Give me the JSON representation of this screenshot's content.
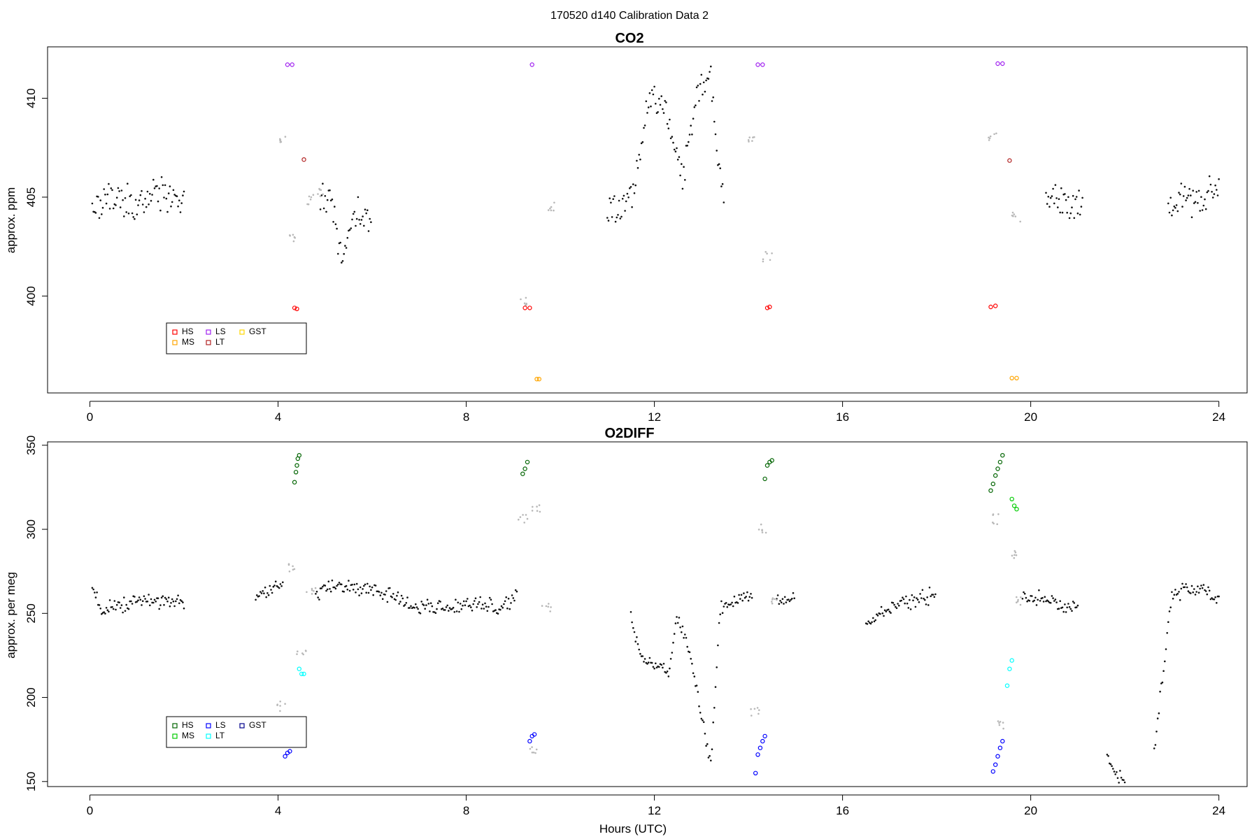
{
  "figure_title": "170520   d140   Calibration Data 2",
  "chart_data": [
    {
      "type": "scatter",
      "title": "CO2",
      "xlabel": "",
      "ylabel": "approx. ppm",
      "xlim": [
        -0.9,
        24.6
      ],
      "ylim": [
        395.1,
        412.6
      ],
      "xticks": [
        0,
        4,
        8,
        12,
        16,
        20,
        24
      ],
      "yticks": [
        400,
        405,
        410
      ],
      "grid": false,
      "legend_position": "bottom-left",
      "legend": [
        {
          "label": "HS",
          "color": "#ff0000"
        },
        {
          "label": "MS",
          "color": "#ffa500"
        },
        {
          "label": "LS",
          "color": "#a020f0"
        },
        {
          "label": "LT",
          "color": "#b22222"
        },
        {
          "label": "GST",
          "color": "#ffd700"
        }
      ],
      "series": [
        {
          "name": "HS",
          "color": "#ff0000",
          "points": [
            [
              4.35,
              399.4
            ],
            [
              4.4,
              399.35
            ],
            [
              9.25,
              399.4
            ],
            [
              9.35,
              399.4
            ],
            [
              14.4,
              399.4
            ],
            [
              14.45,
              399.45
            ],
            [
              19.15,
              399.45
            ],
            [
              19.25,
              399.5
            ]
          ]
        },
        {
          "name": "MS",
          "color": "#ffa500",
          "points": [
            [
              9.5,
              395.8
            ],
            [
              9.55,
              395.8
            ],
            [
              19.6,
              395.85
            ],
            [
              19.7,
              395.85
            ]
          ]
        },
        {
          "name": "LS",
          "color": "#a020f0",
          "points": [
            [
              4.2,
              411.7
            ],
            [
              4.3,
              411.7
            ],
            [
              9.4,
              411.7
            ],
            [
              14.2,
              411.7
            ],
            [
              14.3,
              411.7
            ],
            [
              19.3,
              411.75
            ],
            [
              19.4,
              411.75
            ]
          ]
        },
        {
          "name": "LT",
          "color": "#b22222",
          "points": [
            [
              4.55,
              406.9
            ],
            [
              19.55,
              406.85
            ]
          ]
        },
        {
          "name": "GST",
          "color": "#ffd700",
          "points": []
        }
      ],
      "sample_profile": [
        [
          0.05,
          404.7
        ],
        [
          0.3,
          404.7
        ],
        [
          0.6,
          404.8
        ],
        [
          0.9,
          404.7
        ],
        [
          1.2,
          404.65
        ],
        [
          1.3,
          405.1
        ],
        [
          1.6,
          405.1
        ],
        [
          2.0,
          404.9
        ],
        [
          2.5,
          404.6
        ],
        [
          3.0,
          404.5
        ],
        [
          3.5,
          404.4
        ],
        [
          4.1,
          404.35
        ],
        [
          4.9,
          405.0
        ],
        [
          5.1,
          404.9
        ],
        [
          5.35,
          402.0
        ],
        [
          5.45,
          403.0
        ],
        [
          5.6,
          403.9
        ],
        [
          6.0,
          404.2
        ],
        [
          6.5,
          404.5
        ],
        [
          8.75,
          404.55
        ],
        [
          10.0,
          404.55
        ],
        [
          10.5,
          404.55
        ],
        [
          11.0,
          404.5
        ],
        [
          11.3,
          404.6
        ],
        [
          11.5,
          405.0
        ],
        [
          11.7,
          407.0
        ],
        [
          11.9,
          410.5
        ],
        [
          12.2,
          409.5
        ],
        [
          12.6,
          406.0
        ],
        [
          12.9,
          410.5
        ],
        [
          13.2,
          411.0
        ],
        [
          13.4,
          406.0
        ],
        [
          13.5,
          404.6
        ],
        [
          14.0,
          404.6
        ],
        [
          14.6,
          404.5
        ],
        [
          15.5,
          404.5
        ],
        [
          16.5,
          404.6
        ],
        [
          17.5,
          404.55
        ],
        [
          18.5,
          404.65
        ],
        [
          19.1,
          404.7
        ],
        [
          19.8,
          404.7
        ],
        [
          20.3,
          404.8
        ],
        [
          20.7,
          404.75
        ],
        [
          21.1,
          404.65
        ],
        [
          22.9,
          405.0
        ],
        [
          23.3,
          404.9
        ],
        [
          23.7,
          404.95
        ],
        [
          24.0,
          404.95
        ]
      ],
      "excluded_profile": [
        [
          4.1,
          408.0
        ],
        [
          4.3,
          403.0
        ],
        [
          4.7,
          404.9
        ],
        [
          4.9,
          405.2
        ],
        [
          9.2,
          399.8
        ],
        [
          9.8,
          404.5
        ],
        [
          14.1,
          408.0
        ],
        [
          14.4,
          402.0
        ],
        [
          19.2,
          408.0
        ],
        [
          19.7,
          404.0
        ]
      ]
    },
    {
      "type": "scatter",
      "title": "O2DIFF",
      "xlabel": "Hours (UTC)",
      "ylabel": "approx. per meg",
      "xlim": [
        -0.9,
        24.6
      ],
      "ylim": [
        147,
        352
      ],
      "xticks": [
        0,
        4,
        8,
        12,
        16,
        20,
        24
      ],
      "yticks": [
        150,
        200,
        250,
        300,
        350
      ],
      "grid": false,
      "legend_position": "bottom-left",
      "legend": [
        {
          "label": "HS",
          "color": "#006400"
        },
        {
          "label": "MS",
          "color": "#00cc00"
        },
        {
          "label": "LS",
          "color": "#0000ff"
        },
        {
          "label": "LT",
          "color": "#00ffff"
        },
        {
          "label": "GST",
          "color": "#00008b"
        }
      ],
      "series": [
        {
          "name": "HS",
          "color": "#006400",
          "points": [
            [
              4.35,
              328
            ],
            [
              4.38,
              334
            ],
            [
              4.4,
              338
            ],
            [
              4.42,
              342
            ],
            [
              4.45,
              344
            ],
            [
              9.2,
              333
            ],
            [
              9.25,
              336
            ],
            [
              9.3,
              340
            ],
            [
              14.35,
              330
            ],
            [
              14.4,
              338
            ],
            [
              14.45,
              340
            ],
            [
              14.5,
              341
            ],
            [
              19.15,
              323
            ],
            [
              19.2,
              327
            ],
            [
              19.25,
              332
            ],
            [
              19.3,
              336
            ],
            [
              19.35,
              340
            ],
            [
              19.4,
              344
            ]
          ]
        },
        {
          "name": "MS",
          "color": "#00cc00",
          "points": [
            [
              19.6,
              318
            ],
            [
              19.65,
              314
            ],
            [
              19.7,
              312
            ]
          ]
        },
        {
          "name": "LS",
          "color": "#0000ff",
          "points": [
            [
              4.15,
              165
            ],
            [
              4.2,
              167
            ],
            [
              4.25,
              168
            ],
            [
              9.35,
              174
            ],
            [
              9.4,
              177
            ],
            [
              9.45,
              178
            ],
            [
              14.15,
              155
            ],
            [
              14.2,
              166
            ],
            [
              14.25,
              170
            ],
            [
              14.3,
              174
            ],
            [
              14.35,
              177
            ],
            [
              19.2,
              156
            ],
            [
              19.25,
              160
            ],
            [
              19.3,
              165
            ],
            [
              19.35,
              170
            ],
            [
              19.4,
              174
            ]
          ]
        },
        {
          "name": "LT",
          "color": "#00ffff",
          "points": [
            [
              4.45,
              217
            ],
            [
              4.5,
              214
            ],
            [
              4.55,
              214
            ],
            [
              19.5,
              207
            ],
            [
              19.55,
              217
            ],
            [
              19.6,
              222
            ]
          ]
        },
        {
          "name": "GST",
          "color": "#00008b",
          "points": []
        }
      ],
      "sample_profile": [
        [
          0.05,
          268
        ],
        [
          0.25,
          252
        ],
        [
          0.5,
          254
        ],
        [
          0.8,
          255
        ],
        [
          1.0,
          260
        ],
        [
          1.3,
          258
        ],
        [
          1.6,
          258
        ],
        [
          2.0,
          256
        ],
        [
          2.5,
          255
        ],
        [
          3.0,
          256
        ],
        [
          3.5,
          258
        ],
        [
          3.9,
          265
        ],
        [
          4.1,
          265
        ],
        [
          4.8,
          262
        ],
        [
          5.2,
          266
        ],
        [
          5.6,
          266
        ],
        [
          6.0,
          264
        ],
        [
          6.4,
          262
        ],
        [
          6.8,
          254
        ],
        [
          7.2,
          254
        ],
        [
          7.6,
          254
        ],
        [
          8.0,
          255
        ],
        [
          8.4,
          256
        ],
        [
          8.8,
          254
        ],
        [
          9.1,
          262
        ],
        [
          10.0,
          256
        ],
        [
          10.5,
          254
        ],
        [
          11.0,
          252
        ],
        [
          11.5,
          250
        ],
        [
          11.7,
          225
        ],
        [
          12.0,
          220
        ],
        [
          12.3,
          215
        ],
        [
          12.5,
          250
        ],
        [
          12.8,
          220
        ],
        [
          13.0,
          190
        ],
        [
          13.2,
          160
        ],
        [
          13.4,
          255
        ],
        [
          13.8,
          258
        ],
        [
          14.1,
          262
        ],
        [
          14.6,
          256
        ],
        [
          15.0,
          260
        ],
        [
          15.5,
          258
        ],
        [
          16.0,
          255
        ],
        [
          16.5,
          243
        ],
        [
          16.8,
          250
        ],
        [
          17.2,
          256
        ],
        [
          17.6,
          258
        ],
        [
          18.0,
          261
        ],
        [
          18.5,
          258
        ],
        [
          19.0,
          255
        ],
        [
          19.8,
          260
        ],
        [
          20.2,
          258
        ],
        [
          20.6,
          256
        ],
        [
          21.0,
          254
        ],
        [
          21.6,
          167
        ],
        [
          21.8,
          155
        ],
        [
          22.0,
          150
        ],
        [
          22.6,
          160
        ],
        [
          23.0,
          262
        ],
        [
          23.4,
          265
        ],
        [
          23.8,
          263
        ],
        [
          24.0,
          256
        ]
      ],
      "excluded_profile": [
        [
          4.05,
          195
        ],
        [
          4.3,
          277
        ],
        [
          4.5,
          225
        ],
        [
          4.7,
          262
        ],
        [
          9.2,
          307
        ],
        [
          9.4,
          168
        ],
        [
          9.5,
          313
        ],
        [
          9.7,
          254
        ],
        [
          14.15,
          192
        ],
        [
          14.3,
          301
        ],
        [
          14.5,
          256
        ],
        [
          19.25,
          306
        ],
        [
          19.4,
          183
        ],
        [
          19.6,
          285
        ],
        [
          19.7,
          258
        ]
      ]
    }
  ]
}
